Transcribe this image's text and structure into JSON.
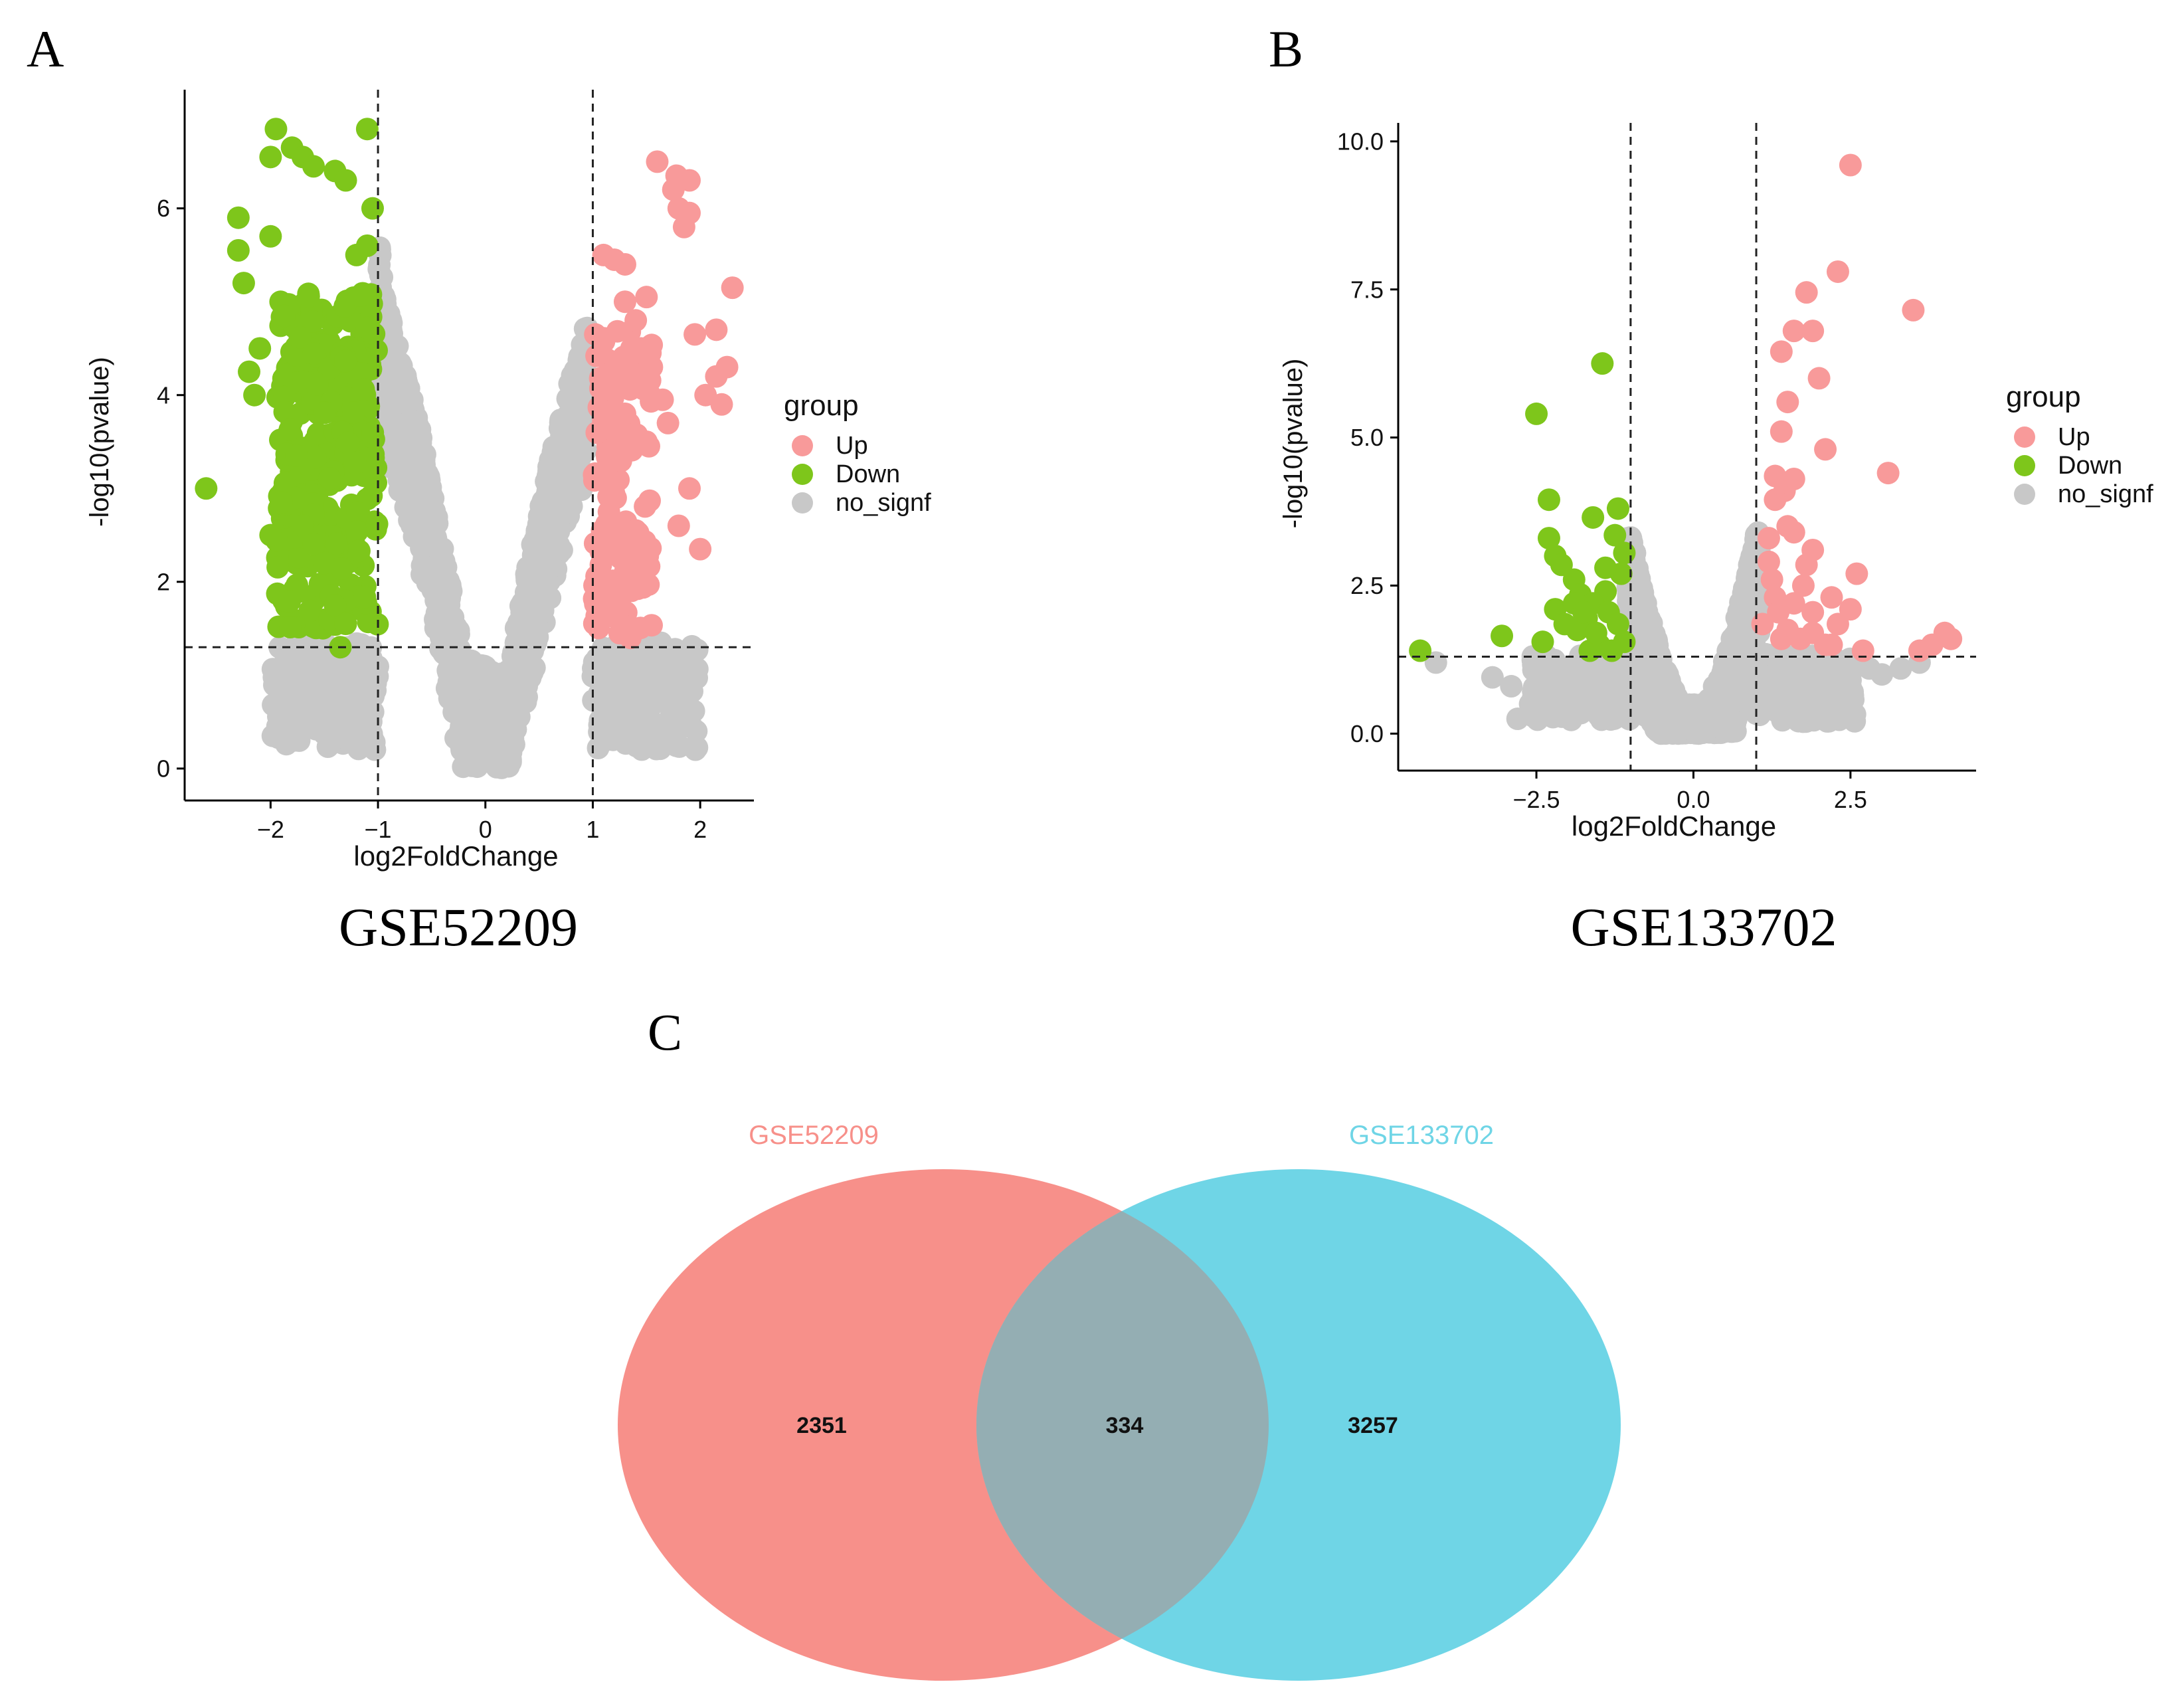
{
  "figure": {
    "panel_labels": [
      "A",
      "B",
      "C"
    ],
    "captions": [
      "GSE52209",
      "GSE133702"
    ]
  },
  "colors": {
    "up": "#f89a9a",
    "down": "#7ec61b",
    "nosig": "#c8c8c8",
    "venn_left": "#f7908a",
    "venn_right": "#6fd5e6",
    "venn_overlap": "#94aeb3"
  },
  "chart_data": [
    {
      "type": "scatter",
      "subtype": "volcano",
      "xlabel": "log2FoldChange",
      "ylabel": "-log10(pvalue)",
      "xlim": [
        -2.8,
        2.5
      ],
      "ylim": [
        -0.2,
        7.2
      ],
      "xticks": [
        -2,
        -1,
        0,
        1,
        2
      ],
      "xtick_labels": [
        "−2",
        "−1",
        "0",
        "1",
        "2"
      ],
      "yticks": [
        0,
        2,
        4,
        6
      ],
      "ytick_labels": [
        "0",
        "2",
        "4",
        "6"
      ],
      "thresholds": {
        "x": [
          -1,
          1
        ],
        "y": 1.3
      },
      "legend": {
        "title": "group",
        "entries": [
          "Up",
          "Down",
          "no_signf"
        ],
        "position": "right"
      },
      "series": [
        {
          "name": "Up",
          "points": [
            [
              1.6,
              6.5
            ],
            [
              1.78,
              6.35
            ],
            [
              1.9,
              6.3
            ],
            [
              1.75,
              6.2
            ],
            [
              1.8,
              6.0
            ],
            [
              1.9,
              5.95
            ],
            [
              1.85,
              5.8
            ],
            [
              1.1,
              5.5
            ],
            [
              1.2,
              5.45
            ],
            [
              1.3,
              5.4
            ],
            [
              1.5,
              5.05
            ],
            [
              1.3,
              5.0
            ],
            [
              2.3,
              5.15
            ],
            [
              1.4,
              4.8
            ],
            [
              1.95,
              4.65
            ],
            [
              2.15,
              4.7
            ],
            [
              2.25,
              4.3
            ],
            [
              2.15,
              4.2
            ],
            [
              2.05,
              4.0
            ],
            [
              2.2,
              3.9
            ],
            [
              1.3,
              3.8
            ],
            [
              1.7,
              3.7
            ],
            [
              1.5,
              3.5
            ],
            [
              1.2,
              3.3
            ],
            [
              1.9,
              3.0
            ],
            [
              1.8,
              2.6
            ],
            [
              2.0,
              2.35
            ],
            [
              1.5,
              2.3
            ],
            [
              1.3,
              2.1
            ],
            [
              1.1,
              1.9
            ],
            [
              1.2,
              1.7
            ],
            [
              1.25,
              1.45
            ],
            [
              1.35,
              1.4
            ],
            [
              1.45,
              4.5
            ],
            [
              1.55,
              4.3
            ],
            [
              1.65,
              3.95
            ],
            [
              1.05,
              3.6
            ],
            [
              1.15,
              2.75
            ],
            [
              1.4,
              2.55
            ]
          ]
        },
        {
          "name": "Down",
          "points": [
            [
              -1.95,
              6.85
            ],
            [
              -2.0,
              6.55
            ],
            [
              -1.8,
              6.65
            ],
            [
              -1.7,
              6.55
            ],
            [
              -1.6,
              6.45
            ],
            [
              -1.4,
              6.4
            ],
            [
              -1.3,
              6.3
            ],
            [
              -1.1,
              6.85
            ],
            [
              -2.3,
              5.9
            ],
            [
              -2.3,
              5.55
            ],
            [
              -2.25,
              5.2
            ],
            [
              -2.0,
              5.7
            ],
            [
              -1.05,
              6.0
            ],
            [
              -1.1,
              5.6
            ],
            [
              -1.2,
              5.5
            ],
            [
              -2.1,
              4.5
            ],
            [
              -2.2,
              4.25
            ],
            [
              -2.15,
              4.0
            ],
            [
              -2.6,
              3.0
            ],
            [
              -2.0,
              2.5
            ],
            [
              -1.9,
              2.85
            ],
            [
              -1.7,
              2.6
            ],
            [
              -1.6,
              2.4
            ],
            [
              -1.5,
              2.2
            ],
            [
              -1.4,
              1.75
            ],
            [
              -1.3,
              1.55
            ],
            [
              -1.35,
              1.3
            ]
          ]
        },
        {
          "name": "no_signf",
          "shape": "v-cloud",
          "tip": [
            0,
            0
          ],
          "top_points": [
            [
              -1.0,
              5.85
            ],
            [
              -0.95,
              5.1
            ],
            [
              -0.8,
              4.5
            ],
            [
              -0.6,
              3.6
            ],
            [
              -0.4,
              2.4
            ],
            [
              -0.2,
              1.2
            ],
            [
              0.2,
              1.0
            ],
            [
              0.4,
              2.2
            ],
            [
              0.6,
              3.3
            ],
            [
              0.8,
              4.2
            ],
            [
              0.95,
              4.8
            ]
          ]
        }
      ]
    },
    {
      "type": "scatter",
      "subtype": "volcano",
      "xlabel": "log2FoldChange",
      "ylabel": "-log10(pvalue)",
      "xlim": [
        -4.7,
        4.5
      ],
      "ylim": [
        -0.4,
        10.2
      ],
      "xticks": [
        -2.5,
        0,
        2.5
      ],
      "xtick_labels": [
        "−2.5",
        "0.0",
        "2.5"
      ],
      "yticks": [
        0,
        2.5,
        5,
        7.5,
        10
      ],
      "ytick_labels": [
        "0.0",
        "2.5",
        "5.0",
        "7.5",
        "10.0"
      ],
      "thresholds": {
        "x": [
          -1,
          1
        ],
        "y": 1.3
      },
      "legend": {
        "title": "group",
        "entries": [
          "Up",
          "Down",
          "no_signf"
        ],
        "position": "right"
      },
      "series": [
        {
          "name": "Up",
          "points": [
            [
              2.5,
              9.6
            ],
            [
              2.3,
              7.8
            ],
            [
              3.5,
              7.15
            ],
            [
              1.8,
              7.45
            ],
            [
              1.6,
              6.8
            ],
            [
              1.9,
              6.8
            ],
            [
              1.4,
              6.45
            ],
            [
              2.0,
              6.0
            ],
            [
              1.5,
              5.6
            ],
            [
              1.4,
              5.1
            ],
            [
              2.1,
              4.8
            ],
            [
              1.3,
              4.35
            ],
            [
              3.1,
              4.4
            ],
            [
              1.6,
              4.3
            ],
            [
              1.45,
              4.1
            ],
            [
              1.3,
              3.95
            ],
            [
              1.5,
              3.5
            ],
            [
              1.6,
              3.4
            ],
            [
              1.9,
              3.1
            ],
            [
              1.8,
              2.85
            ],
            [
              2.6,
              2.7
            ],
            [
              2.2,
              2.3
            ],
            [
              2.5,
              2.1
            ],
            [
              1.4,
              1.6
            ],
            [
              1.7,
              1.6
            ],
            [
              2.1,
              1.5
            ],
            [
              2.7,
              1.4
            ],
            [
              3.6,
              1.4
            ],
            [
              4.0,
              1.7
            ],
            [
              4.1,
              1.6
            ],
            [
              3.8,
              1.5
            ],
            [
              1.2,
              2.9
            ],
            [
              1.25,
              2.6
            ],
            [
              1.3,
              2.3
            ],
            [
              1.6,
              2.2
            ],
            [
              1.9,
              2.05
            ],
            [
              2.3,
              1.85
            ],
            [
              1.1,
              1.85
            ],
            [
              1.5,
              1.75
            ],
            [
              1.9,
              1.7
            ],
            [
              2.2,
              1.5
            ],
            [
              1.2,
              3.3
            ],
            [
              1.75,
              2.5
            ],
            [
              1.35,
              2.05
            ]
          ]
        },
        {
          "name": "Down",
          "points": [
            [
              -1.45,
              6.25
            ],
            [
              -2.5,
              5.4
            ],
            [
              -2.3,
              3.95
            ],
            [
              -1.6,
              3.65
            ],
            [
              -1.2,
              3.8
            ],
            [
              -2.3,
              3.3
            ],
            [
              -2.2,
              3.0
            ],
            [
              -2.1,
              2.85
            ],
            [
              -1.9,
              2.6
            ],
            [
              -1.8,
              2.35
            ],
            [
              -2.2,
              2.1
            ],
            [
              -2.05,
              1.85
            ],
            [
              -1.5,
              1.5
            ],
            [
              -1.3,
              1.4
            ],
            [
              -1.65,
              1.4
            ],
            [
              -2.4,
              1.55
            ],
            [
              -3.05,
              1.65
            ],
            [
              -4.35,
              1.4
            ],
            [
              -1.25,
              3.35
            ],
            [
              -1.1,
              3.05
            ],
            [
              -1.15,
              2.7
            ],
            [
              -1.4,
              2.4
            ],
            [
              -1.6,
              2.2
            ],
            [
              -1.35,
              2.05
            ],
            [
              -1.7,
              1.95
            ],
            [
              -1.2,
              1.85
            ],
            [
              -1.85,
              1.75
            ],
            [
              -1.1,
              1.55
            ],
            [
              -1.55,
              1.7
            ],
            [
              -1.4,
              2.8
            ],
            [
              -1.9,
              2.2
            ],
            [
              -1.75,
              2.05
            ]
          ]
        },
        {
          "name": "no_signf",
          "shape": "v-cloud",
          "tip": [
            0,
            0
          ],
          "top_points": [
            [
              -1.05,
              3.55
            ],
            [
              -0.9,
              3.0
            ],
            [
              -0.7,
              2.0
            ],
            [
              -0.45,
              1.1
            ],
            [
              -0.2,
              0.5
            ],
            [
              0.2,
              0.5
            ],
            [
              0.45,
              1.1
            ],
            [
              0.7,
              2.0
            ],
            [
              0.9,
              3.0
            ],
            [
              1.05,
              3.55
            ]
          ],
          "extra_points": [
            [
              -2.9,
              0.8
            ],
            [
              -2.6,
              0.5
            ],
            [
              -2.8,
              0.25
            ],
            [
              -2.0,
              0.9
            ],
            [
              -1.6,
              1.0
            ],
            [
              -1.3,
              0.6
            ],
            [
              -3.2,
              0.95
            ],
            [
              1.6,
              1.0
            ],
            [
              2.0,
              0.8
            ],
            [
              2.5,
              0.7
            ],
            [
              3.0,
              1.0
            ],
            [
              3.3,
              1.1
            ],
            [
              3.6,
              1.2
            ],
            [
              2.8,
              1.1
            ],
            [
              1.3,
              0.6
            ],
            [
              -4.1,
              1.2
            ],
            [
              -2.2,
              1.2
            ]
          ]
        }
      ]
    },
    {
      "type": "venn",
      "sets": [
        {
          "name": "GSE52209",
          "color": "#f7908a"
        },
        {
          "name": "GSE133702",
          "color": "#6fd5e6"
        }
      ],
      "counts": {
        "only_left": "2351",
        "overlap": "334",
        "only_right": "3257"
      }
    }
  ]
}
